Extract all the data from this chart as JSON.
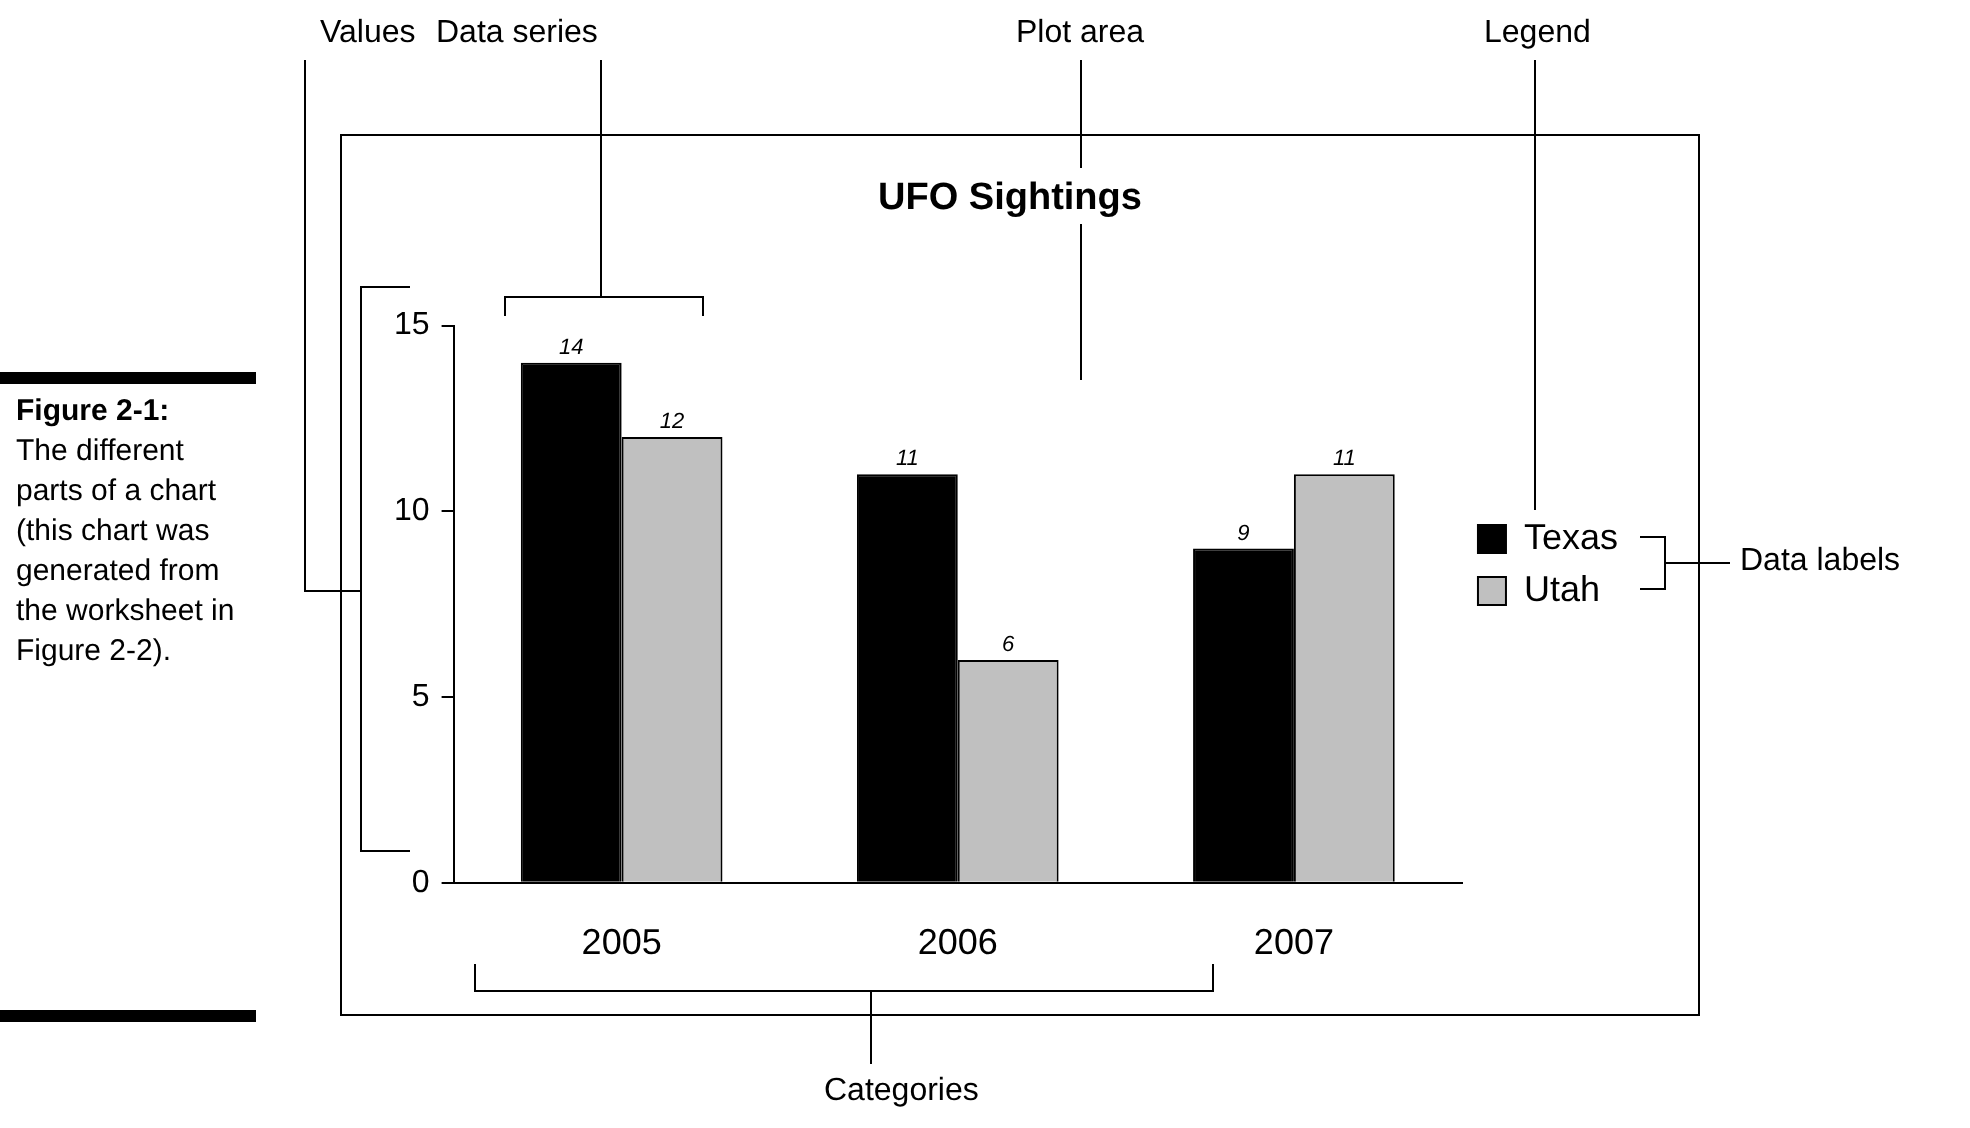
{
  "chart_data": {
    "type": "bar",
    "title": "UFO Sightings",
    "categories": [
      "2005",
      "2006",
      "2007"
    ],
    "series": [
      {
        "name": "Texas",
        "color": "#000000",
        "values": [
          14,
          11,
          9
        ]
      },
      {
        "name": "Utah",
        "color": "#c0c0c0",
        "values": [
          12,
          6,
          11
        ]
      }
    ],
    "ylim": [
      0,
      15
    ],
    "yticks": [
      0,
      5,
      10,
      15
    ],
    "grid": false,
    "legend": "right",
    "data_labels": true,
    "annotations": [
      "Figure 2-1:",
      "The different parts of a chart (this chart was generated from the worksheet in Figure 2-2).",
      "Values",
      "Data series",
      "Plot area",
      "Legend",
      "Data labels",
      "Categories"
    ]
  }
}
